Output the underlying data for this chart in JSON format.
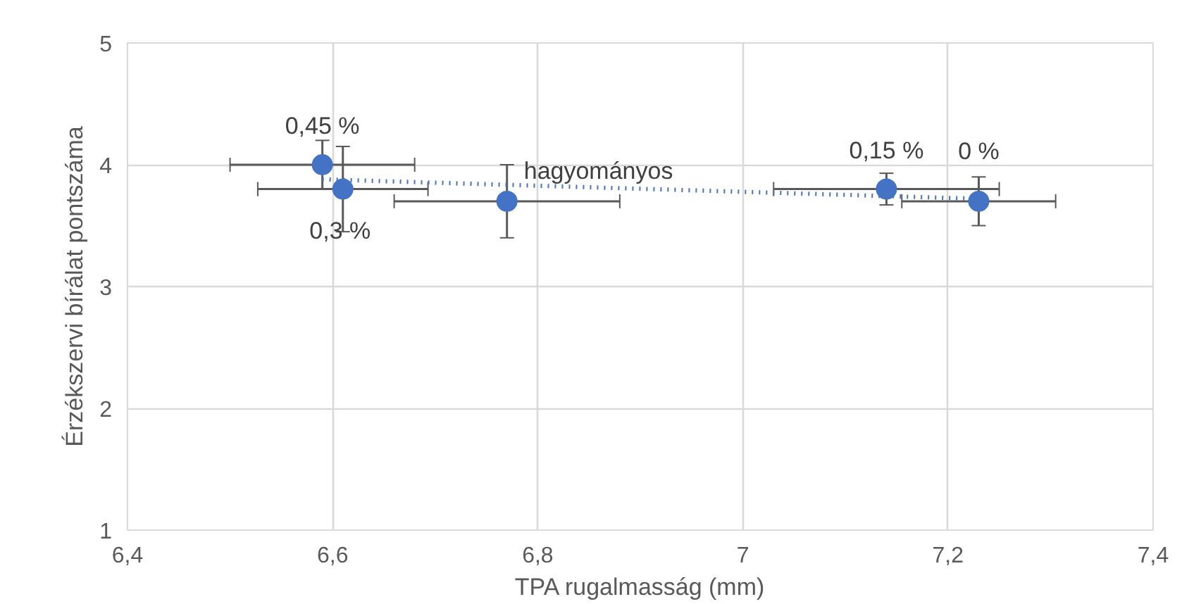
{
  "chart_data": {
    "type": "scatter",
    "xlabel": "TPA rugalmasság (mm)",
    "ylabel": "Érzékszervi bírálat pontszáma",
    "xlim": [
      6.4,
      7.4
    ],
    "xticks": [
      {
        "value": 6.4,
        "label": "6,4"
      },
      {
        "value": 6.6,
        "label": "6,6"
      },
      {
        "value": 6.8,
        "label": "6,8"
      },
      {
        "value": 7,
        "label": "7"
      },
      {
        "value": 7.2,
        "label": "7,2"
      },
      {
        "value": 7.4,
        "label": "7,4"
      }
    ],
    "ylim": [
      1,
      5
    ],
    "yticks": [
      1,
      2,
      3,
      4,
      5
    ],
    "grid": true,
    "series": [
      {
        "marker": "circle",
        "color": "#4472c4",
        "x": [
          6.59,
          6.61,
          6.77,
          7.14,
          7.23
        ],
        "values": [
          4.0,
          3.8,
          3.7,
          3.8,
          3.7
        ],
        "errors": [
          0.2,
          0.35,
          0.3,
          0.13,
          0.2
        ],
        "xerrors": [
          0.09,
          0.083,
          0.11,
          0.11,
          0.075
        ]
      },
      {
        "type": "line",
        "color": "#4472c4",
        "line_style": "dotted",
        "x": [
          6.59,
          7.23
        ],
        "values": [
          3.88,
          3.72
        ]
      }
    ],
    "annotations": [
      {
        "text": "0,45 %",
        "x": 6.59,
        "y": 4.0
      },
      {
        "text": "0,3 %",
        "x": 6.61,
        "y": 3.8
      },
      {
        "text": "hagyományos",
        "x": 6.77,
        "y": 3.7
      },
      {
        "text": "0,15 %",
        "x": 7.14,
        "y": 3.8
      },
      {
        "text": "0 %",
        "x": 7.23,
        "y": 3.7
      }
    ]
  }
}
